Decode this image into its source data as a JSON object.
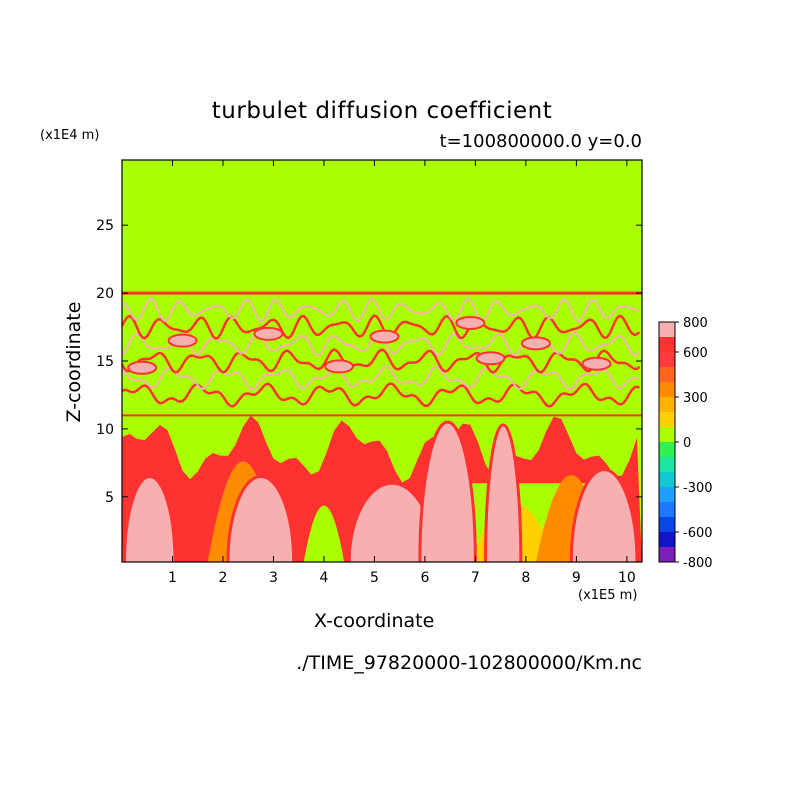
{
  "chart_data": {
    "type": "heatmap",
    "title": "turbulet diffusion coefficient",
    "subtitle": "t=100800000.0 y=0.0",
    "xlabel": "X-coordinate",
    "ylabel": "Z-coordinate",
    "x_unit": "(x1E5 m)",
    "y_unit": "(x1E4 m)",
    "xlim": [
      0,
      10.3
    ],
    "ylim": [
      0.2,
      29.8
    ],
    "x_ticks": [
      1,
      2,
      3,
      4,
      5,
      6,
      7,
      8,
      9,
      10
    ],
    "y_ticks": [
      5,
      10,
      15,
      20,
      25
    ],
    "colorbar": {
      "levels": [
        -800,
        -700,
        -600,
        -500,
        -400,
        -300,
        -200,
        -100,
        0,
        100,
        200,
        300,
        400,
        500,
        600,
        700,
        800
      ],
      "tick_labels": [
        "800",
        "600",
        "300",
        "0",
        "-300",
        "-600",
        "-800"
      ],
      "colors": [
        "#7a1fb8",
        "#1414c8",
        "#0a46e6",
        "#1e78ff",
        "#1ea0ff",
        "#14c8d2",
        "#1ee6a0",
        "#32f050",
        "#aaff00",
        "#ffd000",
        "#ffb400",
        "#ff8c00",
        "#ff6420",
        "#ff3c3c",
        "#ff3232",
        "#f7b0b0"
      ]
    },
    "regions": {
      "background_value": 0,
      "upper_turbulent_band_z": [
        11,
        20
      ],
      "lower_turbulent_band_z": [
        0.2,
        11
      ],
      "max_value_color_band": "600-800"
    }
  },
  "filepath": "./TIME_97820000-102800000/Km.nc"
}
